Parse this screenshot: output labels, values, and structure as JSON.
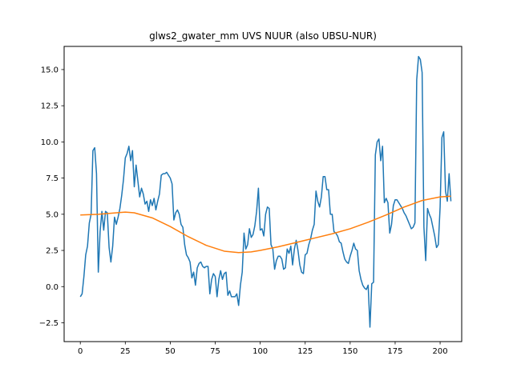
{
  "chart_data": {
    "type": "line",
    "title": "glws2_gwater_mm UVS NUUR (also UBSU-NUR)",
    "xlabel": "",
    "ylabel": "",
    "xlim": [
      -9,
      212
    ],
    "ylim": [
      -3.8,
      16.6
    ],
    "xticks": [
      0,
      25,
      50,
      75,
      100,
      125,
      150,
      175,
      200
    ],
    "yticks": [
      -2.5,
      0.0,
      2.5,
      5.0,
      7.5,
      10.0,
      12.5,
      15.0
    ],
    "ytick_labels": [
      "−2.5",
      "0.0",
      "2.5",
      "5.0",
      "7.5",
      "10.0",
      "12.5",
      "15.0"
    ],
    "grid": false,
    "series": [
      {
        "color": "#1f77b4",
        "points": [
          [
            0,
            -0.7
          ],
          [
            1,
            -0.5
          ],
          [
            2,
            0.7
          ],
          [
            3,
            2.2
          ],
          [
            4,
            2.8
          ],
          [
            5,
            4.4
          ],
          [
            6,
            5.0
          ],
          [
            7,
            9.4
          ],
          [
            8,
            9.6
          ],
          [
            9,
            7.8
          ],
          [
            10,
            1.0
          ],
          [
            11,
            3.8
          ],
          [
            12,
            5.2
          ],
          [
            13,
            3.9
          ],
          [
            14,
            5.2
          ],
          [
            15,
            5.1
          ],
          [
            16,
            2.7
          ],
          [
            17,
            1.7
          ],
          [
            18,
            2.8
          ],
          [
            19,
            4.8
          ],
          [
            20,
            4.3
          ],
          [
            21,
            4.8
          ],
          [
            22,
            5.4
          ],
          [
            23,
            6.3
          ],
          [
            24,
            7.4
          ],
          [
            25,
            8.9
          ],
          [
            26,
            9.2
          ],
          [
            27,
            9.7
          ],
          [
            28,
            8.7
          ],
          [
            29,
            9.4
          ],
          [
            30,
            6.9
          ],
          [
            31,
            8.4
          ],
          [
            32,
            7.3
          ],
          [
            33,
            6.2
          ],
          [
            34,
            6.8
          ],
          [
            35,
            6.4
          ],
          [
            36,
            5.7
          ],
          [
            37,
            5.9
          ],
          [
            38,
            5.2
          ],
          [
            39,
            6.0
          ],
          [
            40,
            5.6
          ],
          [
            41,
            6.1
          ],
          [
            42,
            5.3
          ],
          [
            43,
            5.9
          ],
          [
            44,
            6.4
          ],
          [
            45,
            7.7
          ],
          [
            46,
            7.8
          ],
          [
            47,
            7.8
          ],
          [
            48,
            7.9
          ],
          [
            49,
            7.7
          ],
          [
            50,
            7.5
          ],
          [
            51,
            7.1
          ],
          [
            52,
            4.6
          ],
          [
            53,
            5.1
          ],
          [
            54,
            5.3
          ],
          [
            55,
            5.0
          ],
          [
            56,
            4.3
          ],
          [
            57,
            4.1
          ],
          [
            58,
            2.9
          ],
          [
            59,
            2.2
          ],
          [
            60,
            2.0
          ],
          [
            61,
            1.7
          ],
          [
            62,
            0.6
          ],
          [
            63,
            1.0
          ],
          [
            64,
            0.1
          ],
          [
            65,
            1.3
          ],
          [
            66,
            1.6
          ],
          [
            67,
            1.7
          ],
          [
            68,
            1.4
          ],
          [
            69,
            1.3
          ],
          [
            70,
            1.4
          ],
          [
            71,
            1.4
          ],
          [
            72,
            -0.5
          ],
          [
            73,
            0.5
          ],
          [
            74,
            0.9
          ],
          [
            75,
            0.7
          ],
          [
            76,
            -0.7
          ],
          [
            77,
            0.5
          ],
          [
            78,
            1.1
          ],
          [
            79,
            0.5
          ],
          [
            80,
            0.9
          ],
          [
            81,
            1.0
          ],
          [
            82,
            -0.6
          ],
          [
            83,
            -0.3
          ],
          [
            84,
            -0.7
          ],
          [
            85,
            -0.7
          ],
          [
            86,
            -0.7
          ],
          [
            87,
            -0.5
          ],
          [
            88,
            -1.3
          ],
          [
            89,
            0.1
          ],
          [
            90,
            1.0
          ],
          [
            91,
            3.7
          ],
          [
            92,
            2.6
          ],
          [
            93,
            2.9
          ],
          [
            94,
            4.0
          ],
          [
            95,
            3.4
          ],
          [
            96,
            3.6
          ],
          [
            97,
            4.2
          ],
          [
            98,
            5.2
          ],
          [
            99,
            6.8
          ],
          [
            100,
            3.9
          ],
          [
            101,
            4.0
          ],
          [
            102,
            3.5
          ],
          [
            103,
            5.0
          ],
          [
            104,
            5.5
          ],
          [
            105,
            5.4
          ],
          [
            106,
            2.9
          ],
          [
            107,
            2.6
          ],
          [
            108,
            1.2
          ],
          [
            109,
            1.8
          ],
          [
            110,
            2.1
          ],
          [
            111,
            2.1
          ],
          [
            112,
            1.9
          ],
          [
            113,
            1.2
          ],
          [
            114,
            1.3
          ],
          [
            115,
            2.6
          ],
          [
            116,
            2.3
          ],
          [
            117,
            2.8
          ],
          [
            118,
            1.5
          ],
          [
            119,
            2.6
          ],
          [
            120,
            3.2
          ],
          [
            121,
            2.5
          ],
          [
            122,
            1.5
          ],
          [
            123,
            1.0
          ],
          [
            124,
            0.9
          ],
          [
            125,
            2.2
          ],
          [
            126,
            2.3
          ],
          [
            127,
            2.9
          ],
          [
            128,
            3.3
          ],
          [
            129,
            3.9
          ],
          [
            130,
            4.3
          ],
          [
            131,
            6.6
          ],
          [
            132,
            5.9
          ],
          [
            133,
            5.5
          ],
          [
            134,
            6.2
          ],
          [
            135,
            7.6
          ],
          [
            136,
            7.6
          ],
          [
            137,
            6.7
          ],
          [
            138,
            6.7
          ],
          [
            139,
            5.0
          ],
          [
            140,
            5.0
          ],
          [
            141,
            3.8
          ],
          [
            142,
            3.7
          ],
          [
            143,
            3.5
          ],
          [
            144,
            3.1
          ],
          [
            145,
            3.0
          ],
          [
            146,
            2.4
          ],
          [
            147,
            1.9
          ],
          [
            148,
            1.7
          ],
          [
            149,
            1.6
          ],
          [
            150,
            2.1
          ],
          [
            151,
            2.5
          ],
          [
            152,
            3.0
          ],
          [
            153,
            2.6
          ],
          [
            154,
            2.5
          ],
          [
            155,
            1.1
          ],
          [
            156,
            0.5
          ],
          [
            157,
            0.1
          ],
          [
            158,
            -0.1
          ],
          [
            159,
            -0.2
          ],
          [
            160,
            0.1
          ],
          [
            161,
            -2.8
          ],
          [
            162,
            0.2
          ],
          [
            163,
            0.3
          ],
          [
            164,
            9.1
          ],
          [
            165,
            10.0
          ],
          [
            166,
            10.2
          ],
          [
            167,
            8.7
          ],
          [
            168,
            9.7
          ],
          [
            169,
            5.8
          ],
          [
            170,
            6.1
          ],
          [
            171,
            5.8
          ],
          [
            172,
            3.7
          ],
          [
            173,
            4.3
          ],
          [
            174,
            5.6
          ],
          [
            175,
            6.0
          ],
          [
            176,
            6.0
          ],
          [
            177,
            5.8
          ],
          [
            178,
            5.6
          ],
          [
            179,
            5.4
          ],
          [
            180,
            5.1
          ],
          [
            181,
            4.9
          ],
          [
            182,
            4.6
          ],
          [
            183,
            4.3
          ],
          [
            184,
            4.0
          ],
          [
            185,
            4.1
          ],
          [
            186,
            4.4
          ],
          [
            187,
            14.3
          ],
          [
            188,
            15.9
          ],
          [
            189,
            15.7
          ],
          [
            190,
            14.8
          ],
          [
            191,
            4.1
          ],
          [
            192,
            1.8
          ],
          [
            193,
            5.4
          ],
          [
            194,
            5.0
          ],
          [
            195,
            4.7
          ],
          [
            196,
            4.1
          ],
          [
            197,
            3.5
          ],
          [
            198,
            2.7
          ],
          [
            199,
            2.9
          ],
          [
            200,
            5.5
          ],
          [
            201,
            10.3
          ],
          [
            202,
            10.7
          ],
          [
            203,
            6.6
          ],
          [
            204,
            5.9
          ],
          [
            205,
            7.8
          ],
          [
            206,
            5.9
          ]
        ]
      },
      {
        "color": "#ff7f0e",
        "points": [
          [
            0,
            4.95
          ],
          [
            10,
            5.0
          ],
          [
            20,
            5.1
          ],
          [
            25,
            5.15
          ],
          [
            30,
            5.1
          ],
          [
            40,
            4.75
          ],
          [
            50,
            4.15
          ],
          [
            60,
            3.45
          ],
          [
            70,
            2.85
          ],
          [
            80,
            2.45
          ],
          [
            88,
            2.35
          ],
          [
            95,
            2.4
          ],
          [
            100,
            2.5
          ],
          [
            110,
            2.75
          ],
          [
            120,
            3.05
          ],
          [
            130,
            3.35
          ],
          [
            140,
            3.65
          ],
          [
            150,
            4.0
          ],
          [
            160,
            4.45
          ],
          [
            170,
            4.95
          ],
          [
            180,
            5.5
          ],
          [
            190,
            5.95
          ],
          [
            200,
            6.2
          ],
          [
            206,
            6.25
          ]
        ]
      }
    ]
  }
}
